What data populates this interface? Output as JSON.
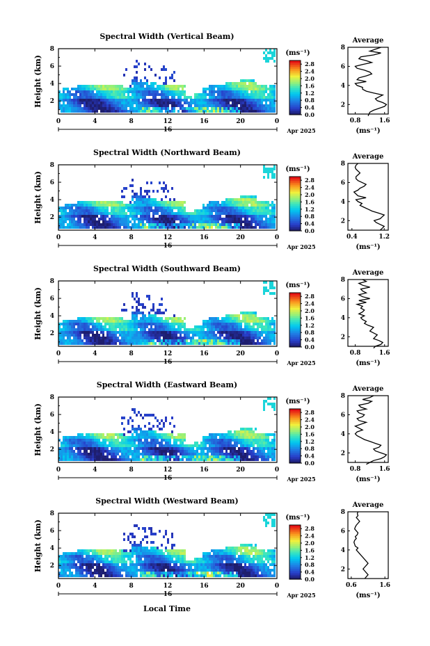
{
  "figure": {
    "xlabel": "Local Time",
    "cbar_unit": "(ms⁻¹)",
    "avg_title": "Average",
    "avg_unit": "(ms⁻¹)",
    "colors": {
      "low": "#1a1a6e",
      "mid": "#00c8ff",
      "high": "#ff0000"
    }
  },
  "chart_data": [
    {
      "type": "heatmap",
      "title": "Spectral Width (Vertical Beam)",
      "ylabel": "Height (km)",
      "x_ticks": [
        "0",
        "4",
        "8",
        "12",
        "16",
        "20",
        "0"
      ],
      "x_range": [
        0,
        24
      ],
      "y_ticks": [
        "2",
        "4",
        "6",
        "8"
      ],
      "y_range": [
        0.5,
        8
      ],
      "date_mark": "16",
      "date_label": "Apr 2025",
      "cbar_ticks": [
        "0.0",
        "0.4",
        "0.8",
        "1.2",
        "1.6",
        "2.0",
        "2.4",
        "2.8"
      ],
      "cbar_range": [
        0,
        3
      ],
      "avg": {
        "x_ticks": [
          "0.8",
          "1.6"
        ],
        "x_range": [
          0.6,
          1.7
        ],
        "profile": [
          [
            0.8,
            1.15
          ],
          [
            1.2,
            1.2
          ],
          [
            1.4,
            1.3
          ],
          [
            1.6,
            1.45
          ],
          [
            1.8,
            1.6
          ],
          [
            2.0,
            1.65
          ],
          [
            2.2,
            1.55
          ],
          [
            2.4,
            1.4
          ],
          [
            2.6,
            1.35
          ],
          [
            2.8,
            1.45
          ],
          [
            3.0,
            1.55
          ],
          [
            3.2,
            1.3
          ],
          [
            3.4,
            1.1
          ],
          [
            3.6,
            1.0
          ],
          [
            3.8,
            1.0
          ],
          [
            4.0,
            0.85
          ],
          [
            4.2,
            0.8
          ],
          [
            4.4,
            1.1
          ],
          [
            4.6,
            0.85
          ],
          [
            4.8,
            0.9
          ],
          [
            5.0,
            1.1
          ],
          [
            5.2,
            1.25
          ],
          [
            5.4,
            1.2
          ],
          [
            5.6,
            1.05
          ],
          [
            5.8,
            0.85
          ],
          [
            6.0,
            0.8
          ],
          [
            6.2,
            1.0
          ],
          [
            6.4,
            1.25
          ],
          [
            6.6,
            1.1
          ],
          [
            6.8,
            0.9
          ],
          [
            7.0,
            0.95
          ],
          [
            7.2,
            1.3
          ],
          [
            7.4,
            1.5
          ],
          [
            7.6,
            1.2
          ],
          [
            7.8,
            1.35
          ],
          [
            8.0,
            1.5
          ]
        ]
      }
    },
    {
      "type": "heatmap",
      "title": "Spectral Width (Northward Beam)",
      "ylabel": "Height (km)",
      "x_ticks": [
        "0",
        "4",
        "8",
        "12",
        "16",
        "20",
        "0"
      ],
      "x_range": [
        0,
        24
      ],
      "y_ticks": [
        "2",
        "4",
        "6",
        "8"
      ],
      "y_range": [
        0.5,
        8
      ],
      "date_mark": "16",
      "date_label": "Apr 2025",
      "cbar_ticks": [
        "0.0",
        "0.4",
        "0.8",
        "1.2",
        "1.6",
        "2.0",
        "2.4",
        "2.8"
      ],
      "cbar_range": [
        0,
        3
      ],
      "avg": {
        "x_ticks": [
          "0.4",
          "1.2"
        ],
        "x_range": [
          0.3,
          1.3
        ],
        "profile": [
          [
            1.0,
            1.1
          ],
          [
            1.2,
            1.15
          ],
          [
            1.4,
            1.2
          ],
          [
            1.6,
            1.1
          ],
          [
            1.8,
            1.0
          ],
          [
            2.0,
            0.95
          ],
          [
            2.2,
            1.1
          ],
          [
            2.4,
            1.15
          ],
          [
            2.6,
            1.2
          ],
          [
            2.8,
            1.05
          ],
          [
            3.0,
            0.9
          ],
          [
            3.2,
            0.8
          ],
          [
            3.4,
            0.7
          ],
          [
            3.6,
            0.6
          ],
          [
            3.8,
            0.65
          ],
          [
            4.0,
            0.55
          ],
          [
            4.2,
            0.5
          ],
          [
            4.4,
            0.75
          ],
          [
            4.6,
            0.55
          ],
          [
            4.8,
            0.5
          ],
          [
            5.0,
            0.45
          ],
          [
            5.2,
            0.55
          ],
          [
            5.4,
            0.6
          ],
          [
            5.6,
            0.7
          ],
          [
            5.8,
            0.75
          ],
          [
            6.0,
            0.65
          ],
          [
            6.2,
            0.55
          ],
          [
            6.4,
            0.5
          ],
          [
            6.6,
            0.5
          ],
          [
            6.8,
            0.55
          ],
          [
            7.0,
            0.6
          ],
          [
            7.2,
            0.55
          ],
          [
            7.4,
            0.5
          ],
          [
            7.6,
            0.48
          ],
          [
            7.8,
            0.5
          ],
          [
            8.0,
            0.55
          ]
        ]
      }
    },
    {
      "type": "heatmap",
      "title": "Spectral Width (Southward Beam)",
      "ylabel": "Height (km)",
      "x_ticks": [
        "0",
        "4",
        "8",
        "12",
        "16",
        "20",
        "0"
      ],
      "x_range": [
        0,
        24
      ],
      "y_ticks": [
        "2",
        "4",
        "6",
        "8"
      ],
      "y_range": [
        0.5,
        8
      ],
      "date_mark": "16",
      "date_label": "Apr 2025",
      "cbar_ticks": [
        "0.0",
        "0.4",
        "0.8",
        "1.2",
        "1.6",
        "2.0",
        "2.4",
        "2.8"
      ],
      "cbar_range": [
        0,
        3
      ],
      "avg": {
        "x_ticks": [
          "0.8",
          "1.6"
        ],
        "x_range": [
          0.6,
          1.7
        ],
        "profile": [
          [
            0.8,
            1.3
          ],
          [
            1.0,
            1.35
          ],
          [
            1.2,
            1.5
          ],
          [
            1.4,
            1.55
          ],
          [
            1.6,
            1.45
          ],
          [
            1.8,
            1.3
          ],
          [
            2.0,
            1.35
          ],
          [
            2.2,
            1.4
          ],
          [
            2.4,
            1.3
          ],
          [
            2.6,
            1.2
          ],
          [
            2.8,
            1.25
          ],
          [
            3.0,
            1.3
          ],
          [
            3.2,
            1.15
          ],
          [
            3.4,
            1.05
          ],
          [
            3.6,
            1.1
          ],
          [
            3.8,
            1.0
          ],
          [
            4.0,
            0.95
          ],
          [
            4.2,
            1.05
          ],
          [
            4.4,
            0.9
          ],
          [
            4.6,
            1.0
          ],
          [
            4.8,
            1.05
          ],
          [
            5.0,
            0.95
          ],
          [
            5.2,
            1.0
          ],
          [
            5.4,
            0.85
          ],
          [
            5.6,
            1.1
          ],
          [
            5.8,
            0.9
          ],
          [
            6.0,
            1.2
          ],
          [
            6.2,
            1.0
          ],
          [
            6.4,
            0.9
          ],
          [
            6.6,
            1.1
          ],
          [
            6.8,
            1.0
          ],
          [
            7.0,
            0.95
          ],
          [
            7.2,
            1.2
          ],
          [
            7.4,
            1.0
          ],
          [
            7.6,
            0.9
          ],
          [
            7.8,
            1.1
          ],
          [
            8.0,
            1.0
          ]
        ]
      }
    },
    {
      "type": "heatmap",
      "title": "Spectral Width (Eastward Beam)",
      "ylabel": "Height (km)",
      "x_ticks": [
        "0",
        "4",
        "8",
        "12",
        "16",
        "20",
        "0"
      ],
      "x_range": [
        0,
        24
      ],
      "y_ticks": [
        "2",
        "4",
        "6",
        "8"
      ],
      "y_range": [
        0.5,
        8
      ],
      "date_mark": "16",
      "date_label": "Apr 2025",
      "cbar_ticks": [
        "0.0",
        "0.4",
        "0.8",
        "1.2",
        "1.6",
        "2.0",
        "2.4",
        "2.8"
      ],
      "cbar_range": [
        0,
        3
      ],
      "avg": {
        "x_ticks": [
          "0.8",
          "1.6"
        ],
        "x_range": [
          0.6,
          1.7
        ],
        "profile": [
          [
            0.8,
            1.1
          ],
          [
            1.0,
            1.2
          ],
          [
            1.2,
            1.3
          ],
          [
            1.4,
            1.5
          ],
          [
            1.6,
            1.6
          ],
          [
            1.8,
            1.65
          ],
          [
            2.0,
            1.5
          ],
          [
            2.2,
            1.35
          ],
          [
            2.4,
            1.3
          ],
          [
            2.6,
            1.45
          ],
          [
            2.8,
            1.5
          ],
          [
            3.0,
            1.35
          ],
          [
            3.2,
            1.2
          ],
          [
            3.4,
            1.05
          ],
          [
            3.6,
            0.95
          ],
          [
            3.8,
            0.85
          ],
          [
            4.0,
            0.8
          ],
          [
            4.2,
            0.85
          ],
          [
            4.4,
            1.0
          ],
          [
            4.6,
            0.9
          ],
          [
            4.8,
            0.8
          ],
          [
            5.0,
            0.95
          ],
          [
            5.2,
            1.1
          ],
          [
            5.4,
            0.9
          ],
          [
            5.6,
            0.85
          ],
          [
            5.8,
            1.0
          ],
          [
            6.0,
            1.05
          ],
          [
            6.2,
            0.9
          ],
          [
            6.4,
            0.85
          ],
          [
            6.6,
            1.1
          ],
          [
            6.8,
            0.95
          ],
          [
            7.0,
            0.9
          ],
          [
            7.2,
            1.15
          ],
          [
            7.4,
            1.25
          ],
          [
            7.6,
            1.0
          ],
          [
            7.8,
            1.2
          ],
          [
            8.0,
            1.3
          ]
        ]
      }
    },
    {
      "type": "heatmap",
      "title": "Spectral Width (Westward Beam)",
      "ylabel": "Height (km)",
      "x_ticks": [
        "0",
        "4",
        "8",
        "12",
        "16",
        "20",
        "0"
      ],
      "x_range": [
        0,
        24
      ],
      "y_ticks": [
        "2",
        "4",
        "6",
        "8"
      ],
      "y_range": [
        0.5,
        8
      ],
      "date_mark": "16",
      "date_label": "Apr 2025",
      "cbar_ticks": [
        "0.0",
        "0.4",
        "0.8",
        "1.2",
        "1.6",
        "2.0",
        "2.4",
        "2.8"
      ],
      "cbar_range": [
        0,
        3
      ],
      "avg": {
        "x_ticks": [
          "0.6",
          "1.6"
        ],
        "x_range": [
          0.5,
          1.7
        ],
        "profile": [
          [
            1.0,
            1.0
          ],
          [
            1.2,
            1.05
          ],
          [
            1.4,
            1.1
          ],
          [
            1.6,
            1.05
          ],
          [
            1.8,
            1.0
          ],
          [
            2.0,
            0.95
          ],
          [
            2.2,
            1.0
          ],
          [
            2.4,
            1.05
          ],
          [
            2.6,
            1.1
          ],
          [
            2.8,
            1.05
          ],
          [
            3.0,
            1.0
          ],
          [
            3.2,
            0.95
          ],
          [
            3.4,
            0.9
          ],
          [
            3.6,
            0.85
          ],
          [
            3.8,
            0.8
          ],
          [
            4.0,
            0.75
          ],
          [
            4.2,
            0.8
          ],
          [
            4.4,
            0.72
          ],
          [
            4.6,
            0.7
          ],
          [
            4.8,
            0.68
          ],
          [
            5.0,
            0.7
          ],
          [
            5.2,
            0.75
          ],
          [
            5.4,
            0.72
          ],
          [
            5.6,
            0.78
          ],
          [
            5.8,
            0.8
          ],
          [
            6.0,
            0.75
          ],
          [
            6.2,
            0.7
          ],
          [
            6.4,
            0.72
          ],
          [
            6.6,
            0.75
          ],
          [
            6.8,
            0.8
          ],
          [
            7.0,
            0.85
          ],
          [
            7.2,
            0.8
          ],
          [
            7.4,
            0.75
          ],
          [
            7.6,
            0.8
          ],
          [
            7.8,
            0.78
          ],
          [
            8.0,
            0.8
          ]
        ]
      }
    }
  ]
}
